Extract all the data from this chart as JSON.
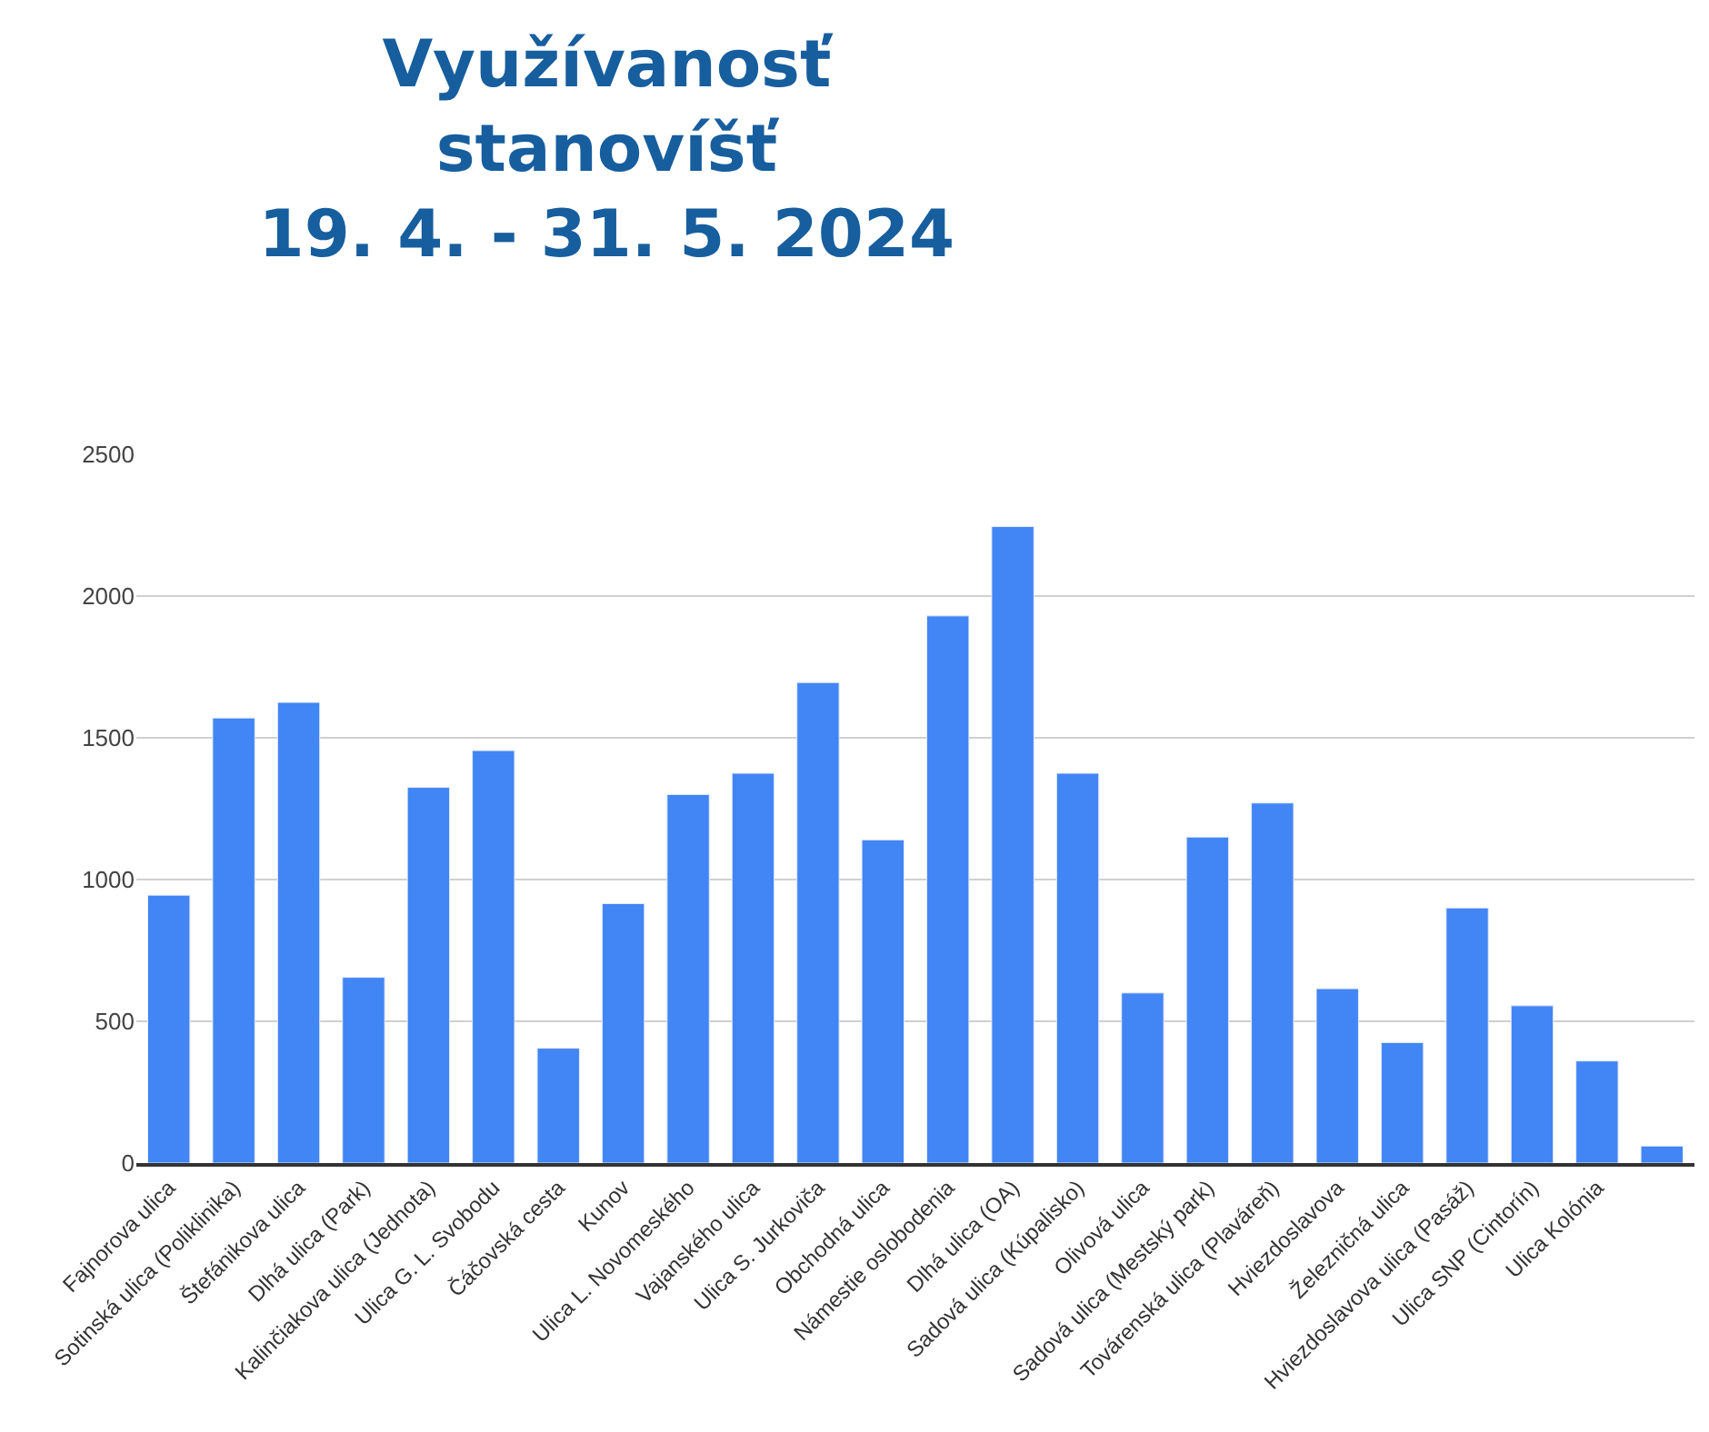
{
  "chart_data": {
    "type": "bar",
    "title": "Využívanosť\nstanovíšť\n19. 4. - 31. 5. 2024",
    "categories": [
      "Fajnorova ulica",
      "Sotinská ulica (Poliklinika)",
      "Štefánikova ulica",
      "Dlhá ulica (Park)",
      "Kalinčiakova ulica (Jednota)",
      "Ulica G. L. Svobodu",
      "Čáčovská cesta",
      "Kunov",
      "Ulica L. Novomeského",
      "Vajanského ulica",
      "Ulica S. Jurkoviča",
      "Obchodná ulica",
      "Námestie oslobodenia",
      "Dlhá ulica (OA)",
      "Sadová ulica (Kúpalisko)",
      "Olivová ulica",
      "Sadová ulica (Mestský park)",
      "Továrenská ulica (Plaváreň)",
      "Hviezdoslavova",
      "Železničná ulica",
      "Hviezdoslavova ulica (Pasáž)",
      "Ulica SNP (Cintorín)",
      "Ulica Kolónia",
      null
    ],
    "values": [
      945,
      1570,
      1625,
      655,
      1325,
      1455,
      405,
      915,
      1300,
      1375,
      1695,
      1140,
      1930,
      2245,
      1375,
      600,
      1150,
      1270,
      615,
      425,
      900,
      555,
      360,
      60
    ],
    "color": "#4285f4",
    "ylim": [
      0,
      2500
    ],
    "yticks": [
      0,
      500,
      1000,
      1500,
      2000,
      2500
    ],
    "grid": "y",
    "legend": false
  }
}
